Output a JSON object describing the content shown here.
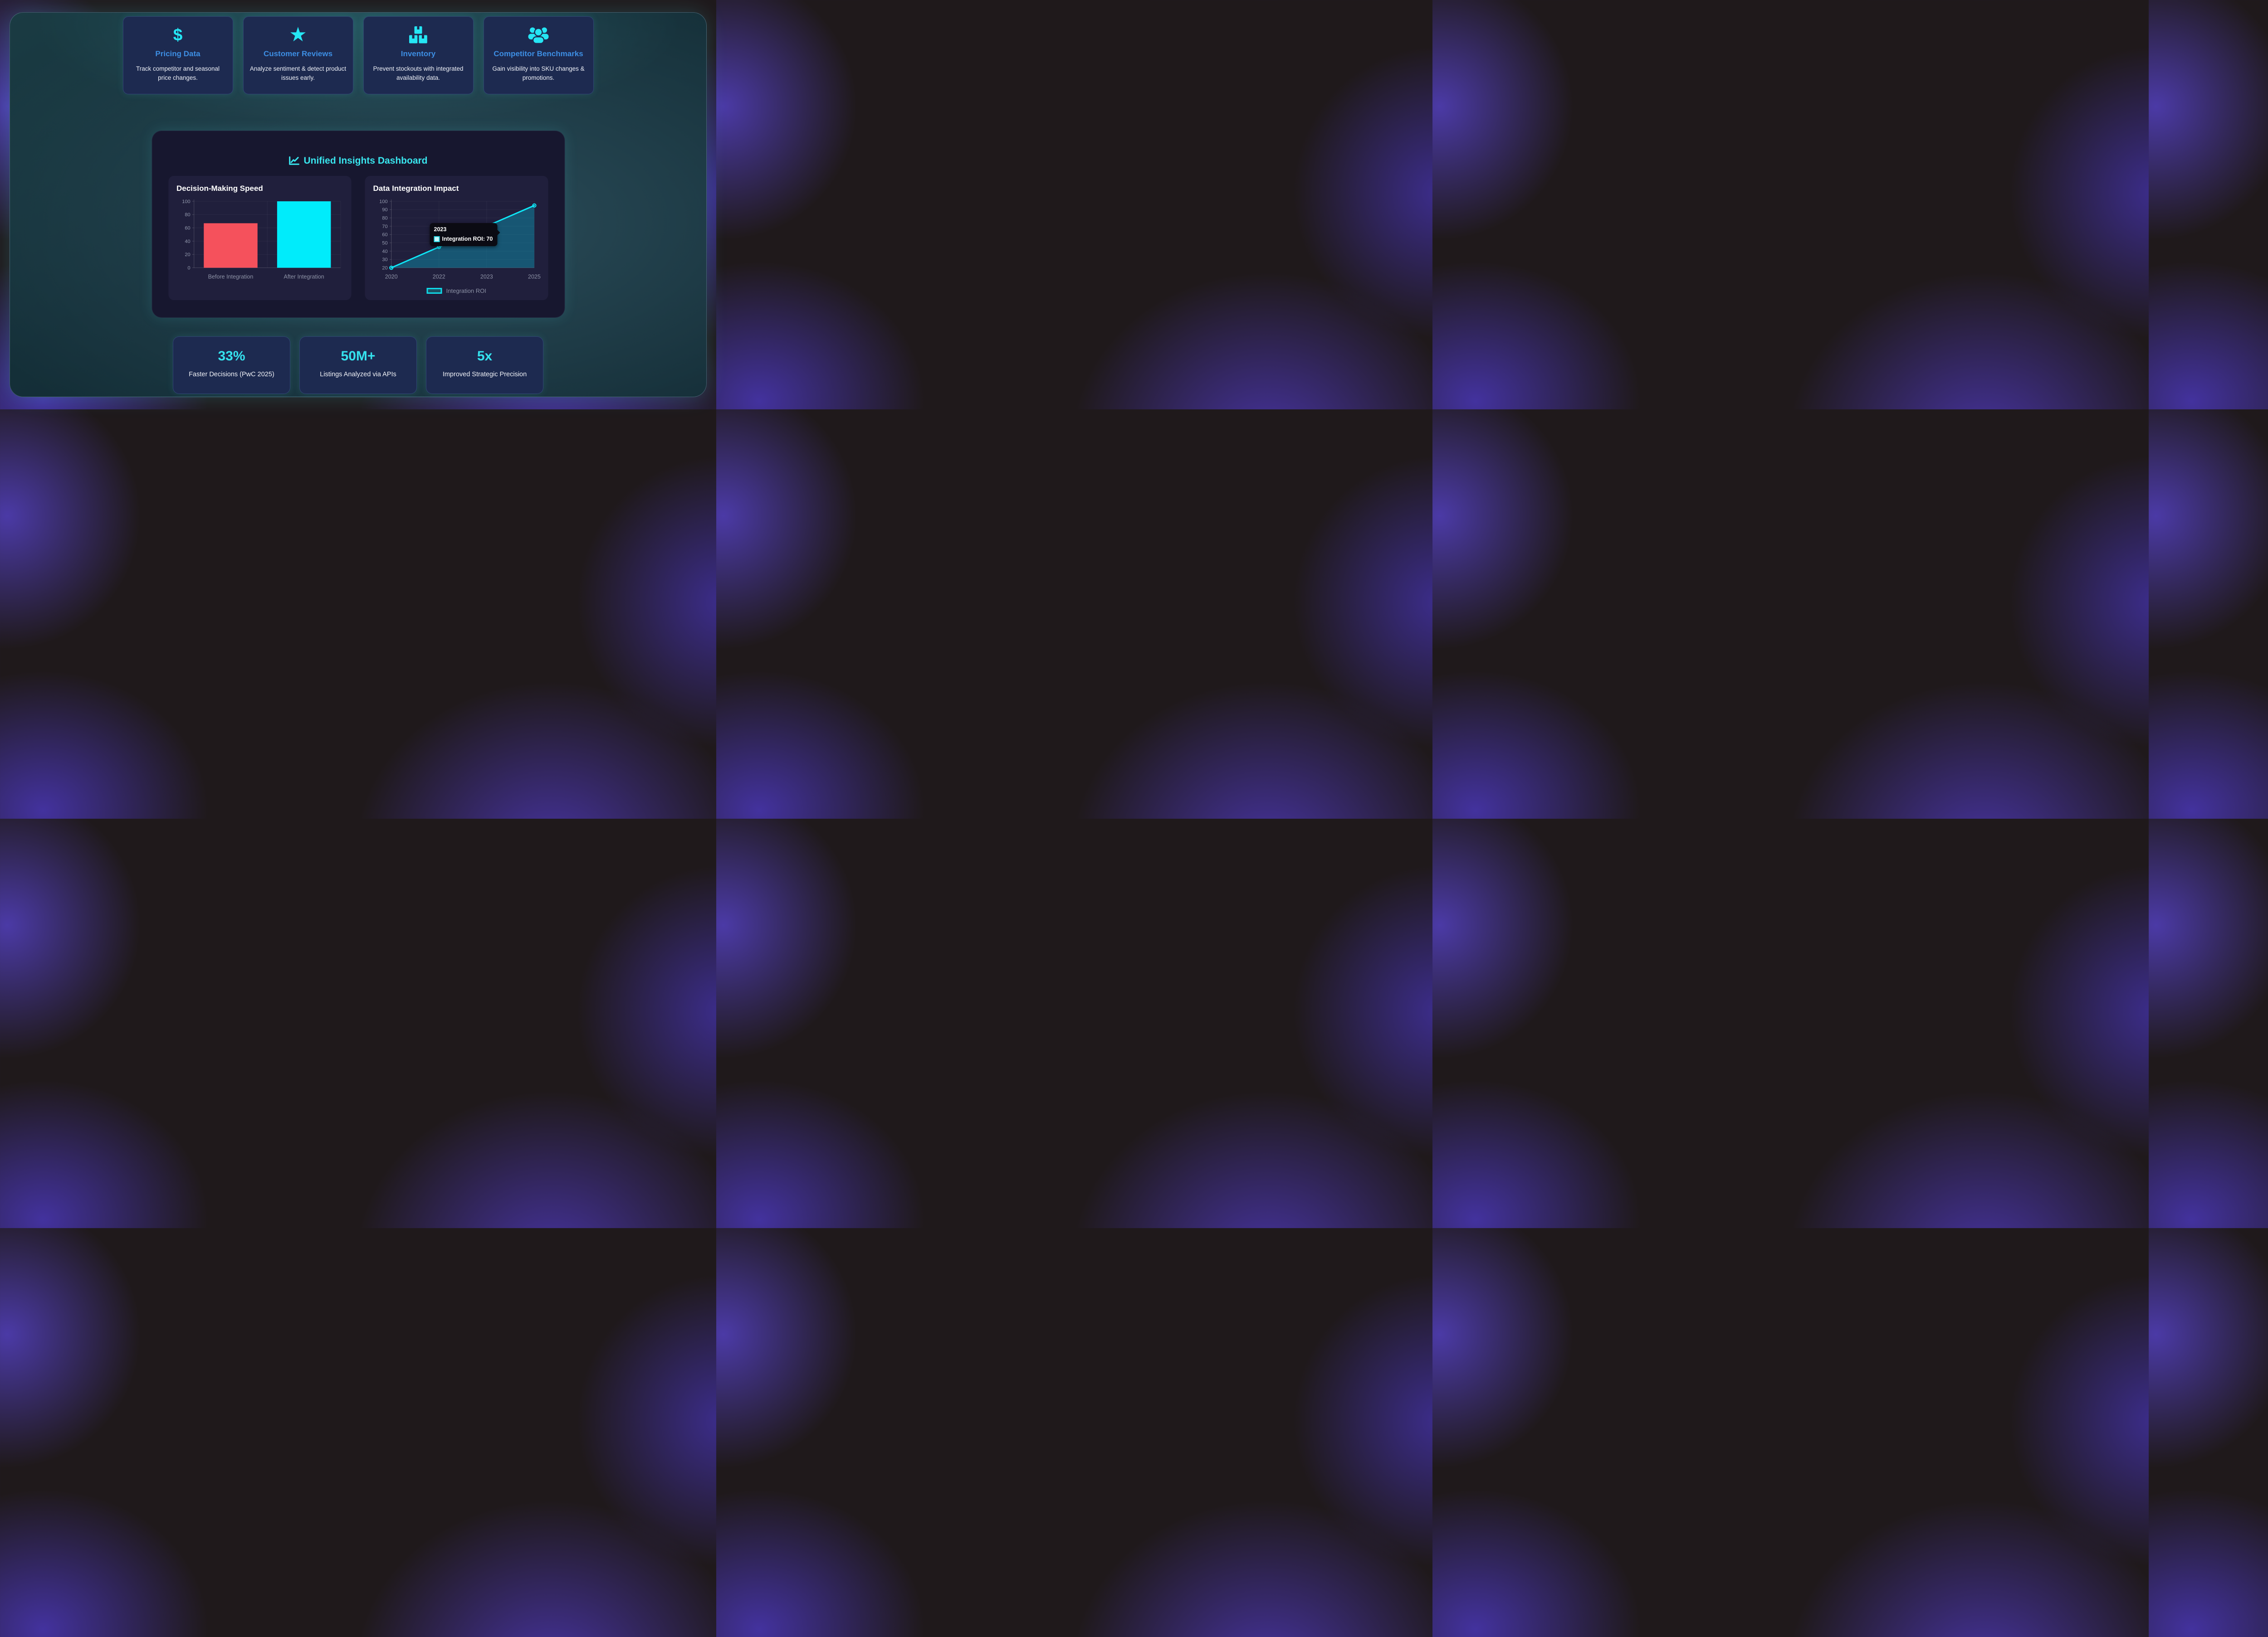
{
  "colors": {
    "accent_cyan": "#25e6f4",
    "accent_blue": "#3d8ee3",
    "bar_red": "#f5515c",
    "bar_cyan": "#00ecfb",
    "line_cyan": "#0ee7f7",
    "area_fill": "rgba(11,170,197,0.40)",
    "card_navy": "#1d2a50",
    "panel_bg": "#17172f",
    "chart_card_bg": "#201f3c",
    "container_teal": "#1d3e49",
    "axis_label_gray": "#9298ad"
  },
  "feature_cards": [
    {
      "icon": "dollar-icon",
      "title": "Pricing Data",
      "description": "Track competitor and seasonal price changes."
    },
    {
      "icon": "star-icon",
      "title": "Customer Reviews",
      "description": "Analyze sentiment & detect product issues early."
    },
    {
      "icon": "boxes-icon",
      "title": "Inventory",
      "description": "Prevent stockouts with integrated availability data."
    },
    {
      "icon": "users-icon",
      "title": "Competitor Benchmarks",
      "description": "Gain visibility into SKU changes & promotions."
    }
  ],
  "dashboard": {
    "title": "Unified Insights Dashboard",
    "icon": "chart-line-icon"
  },
  "chart_data": [
    {
      "type": "bar",
      "title": "Decision-Making Speed",
      "categories": [
        "Before Integration",
        "After Integration"
      ],
      "values": [
        67,
        100
      ],
      "bar_colors": [
        "#f5515c",
        "#00ecfb"
      ],
      "ylim": [
        0,
        100
      ],
      "yticks": [
        0,
        20,
        40,
        60,
        80,
        100
      ],
      "grid": true,
      "legend_position": "none"
    },
    {
      "type": "line",
      "title": "Data Integration Impact",
      "x": [
        "2020",
        "2022",
        "2023",
        "2025"
      ],
      "series": [
        {
          "name": "Integration ROI",
          "values": [
            20,
            45,
            70,
            95
          ]
        }
      ],
      "line_color": "#0ee7f7",
      "fill_color": "rgba(11,170,197,0.40)",
      "ylim": [
        20,
        100
      ],
      "yticks": [
        20,
        30,
        40,
        50,
        60,
        70,
        80,
        90,
        100
      ],
      "grid": true,
      "legend_position": "bottom",
      "tooltip": {
        "title": "2023",
        "label": "Integration ROI: 70"
      }
    }
  ],
  "stats": [
    {
      "value": "33%",
      "label": "Faster Decisions (PwC 2025)"
    },
    {
      "value": "50M+",
      "label": "Listings Analyzed via APIs"
    },
    {
      "value": "5x",
      "label": "Improved Strategic Precision"
    }
  ]
}
